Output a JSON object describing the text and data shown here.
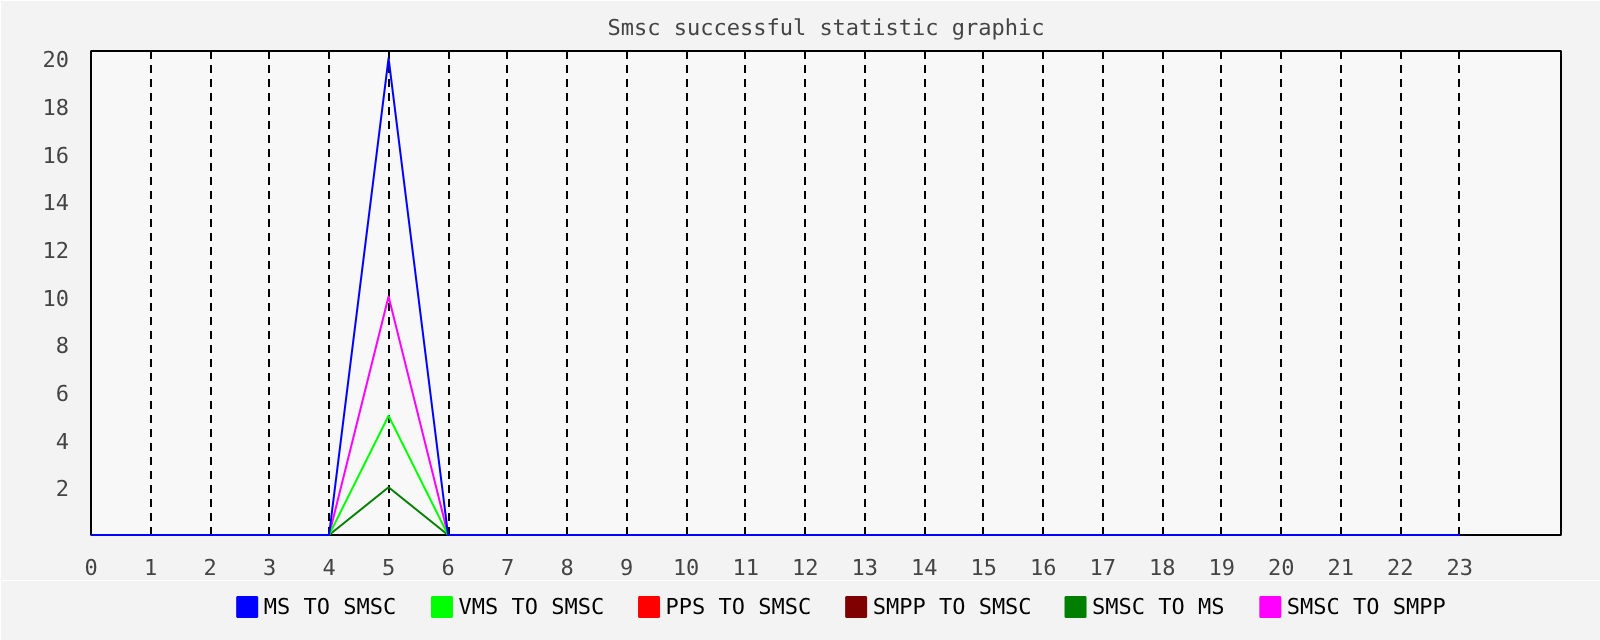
{
  "chart_data": {
    "type": "line",
    "title": "Smsc successful statistic graphic",
    "x": [
      0,
      1,
      2,
      3,
      4,
      5,
      6,
      7,
      8,
      9,
      10,
      11,
      12,
      13,
      14,
      15,
      16,
      17,
      18,
      19,
      20,
      21,
      22,
      23
    ],
    "series": [
      {
        "name": "MS TO SMSC",
        "color": "#0000ff",
        "values": [
          0,
          0,
          0,
          0,
          0,
          20,
          0,
          0,
          0,
          0,
          0,
          0,
          0,
          0,
          0,
          0,
          0,
          0,
          0,
          0,
          0,
          0,
          0,
          0
        ]
      },
      {
        "name": "VMS TO SMSC",
        "color": "#00ff00",
        "values": [
          null,
          null,
          null,
          null,
          0,
          5,
          0,
          null,
          null,
          null,
          null,
          null,
          null,
          null,
          null,
          null,
          null,
          null,
          null,
          null,
          null,
          null,
          null,
          null
        ]
      },
      {
        "name": "PPS TO SMSC",
        "color": "#ff0000",
        "values": [
          null,
          null,
          null,
          null,
          null,
          null,
          null,
          null,
          null,
          null,
          null,
          null,
          null,
          null,
          null,
          null,
          null,
          null,
          null,
          null,
          null,
          null,
          null,
          null
        ]
      },
      {
        "name": "SMPP TO SMSC",
        "color": "#7f0000",
        "values": [
          null,
          null,
          null,
          null,
          null,
          null,
          null,
          null,
          null,
          null,
          null,
          null,
          null,
          null,
          null,
          null,
          null,
          null,
          null,
          null,
          null,
          null,
          null,
          null
        ]
      },
      {
        "name": "SMSC TO MS",
        "color": "#007f00",
        "values": [
          null,
          null,
          null,
          null,
          0,
          2,
          0,
          null,
          null,
          null,
          null,
          null,
          null,
          null,
          null,
          null,
          null,
          null,
          null,
          null,
          null,
          null,
          null,
          null
        ]
      },
      {
        "name": "SMSC TO SMPP",
        "color": "#ff00ff",
        "values": [
          null,
          null,
          null,
          null,
          0,
          10,
          0,
          null,
          null,
          null,
          null,
          null,
          null,
          null,
          null,
          null,
          null,
          null,
          null,
          null,
          null,
          null,
          null,
          null
        ]
      }
    ],
    "xlim": [
      0,
      24.7
    ],
    "ylim": [
      0,
      20.3
    ],
    "xticks": [
      0,
      1,
      2,
      3,
      4,
      5,
      6,
      7,
      8,
      9,
      10,
      11,
      12,
      13,
      14,
      15,
      16,
      17,
      18,
      19,
      20,
      21,
      22,
      23
    ],
    "yticks": [
      2,
      4,
      6,
      8,
      10,
      12,
      14,
      16,
      18,
      20
    ],
    "grid": "x",
    "legend": "bottom",
    "line_style": "solid",
    "marker": "none"
  }
}
